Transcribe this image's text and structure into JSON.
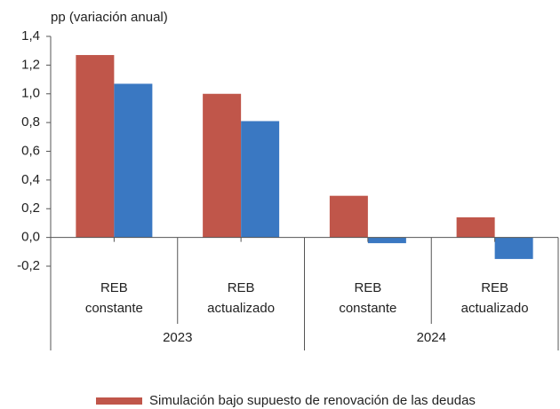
{
  "chart_data": {
    "type": "bar",
    "y_axis_label": "pp (variación anual)",
    "categories": [
      [
        "REB",
        "constante"
      ],
      [
        "REB",
        "actualizado"
      ],
      [
        "REB",
        "constante"
      ],
      [
        "REB",
        "actualizado"
      ]
    ],
    "groups": [
      "2023",
      "2024"
    ],
    "series": [
      {
        "name": "Simulación bajo supuesto de renovación de las deudas",
        "color": "#c0564a",
        "values": [
          1.27,
          1.0,
          0.29,
          0.14
        ]
      },
      {
        "color": "#3a78c2",
        "values": [
          1.07,
          0.81,
          -0.04,
          -0.15
        ]
      }
    ],
    "ylim": [
      -0.2,
      1.4
    ],
    "yticks": [
      {
        "value": -0.2,
        "label": "-0,2"
      },
      {
        "value": 0,
        "label": "0,0"
      },
      {
        "value": 0.2,
        "label": "0,2"
      },
      {
        "value": 0.4,
        "label": "0,4"
      },
      {
        "value": 0.6,
        "label": "0,6"
      },
      {
        "value": 0.8,
        "label": "0,8"
      },
      {
        "value": 1.0,
        "label": "1,0"
      },
      {
        "value": 1.2,
        "label": "1,2"
      },
      {
        "value": 1.4,
        "label": "1,4"
      }
    ],
    "grid": false
  }
}
